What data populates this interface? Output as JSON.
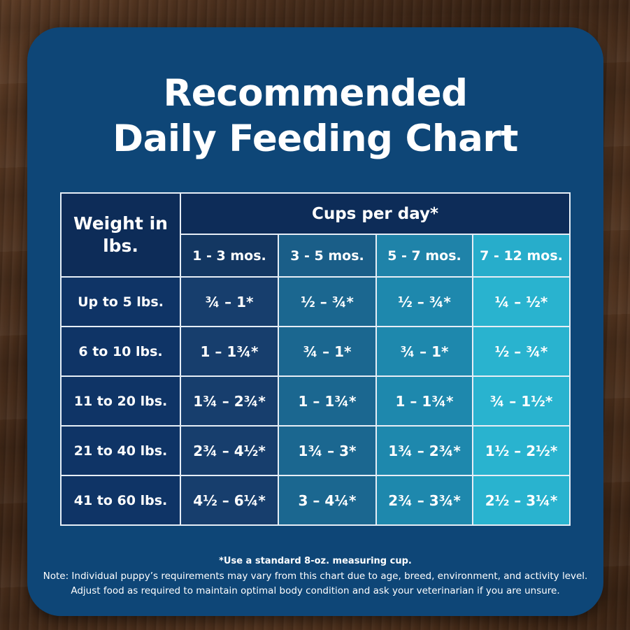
{
  "title": {
    "line1": "Recommended",
    "line2": "Daily Feeding Chart"
  },
  "table": {
    "weight_header": "Weight in lbs.",
    "cups_header": "Cups per day*",
    "ages": [
      "1 - 3 mos.",
      "3 - 5 mos.",
      "5 - 7 mos.",
      "7 - 12 mos."
    ],
    "rows": [
      {
        "weight": "Up to 5 lbs.",
        "values": [
          "¾ – 1*",
          "½ – ¾*",
          "½ – ¾*",
          "¼ – ½*"
        ]
      },
      {
        "weight": "6 to 10 lbs.",
        "values": [
          "1 – 1¾*",
          "¾ – 1*",
          "¾ – 1*",
          "½ – ¾*"
        ]
      },
      {
        "weight": "11 to 20 lbs.",
        "values": [
          "1¾ – 2¾*",
          "1 – 1¾*",
          "1 – 1¾*",
          "¾ – 1½*"
        ]
      },
      {
        "weight": "21 to 40 lbs.",
        "values": [
          "2¾ – 4½*",
          "1¾ – 3*",
          "1¾ – 2¾*",
          "1½ – 2½*"
        ]
      },
      {
        "weight": "41 to 60 lbs.",
        "values": [
          "4½ – 6¼*",
          "3 – 4¼*",
          "2¾ – 3¾*",
          "2½ – 3¼*"
        ]
      }
    ]
  },
  "footnotes": {
    "measure": "*Use a standard 8-oz. measuring cup.",
    "note1": "Note: Individual puppy’s requirements may vary from this chart due to age, breed, environment, and activity level.",
    "note2": "Adjust food as required to maintain optimal body condition and ask your veterinarian if you are unsure."
  },
  "colors": {
    "card": "#0e4677",
    "header_dark": "#0d2c58",
    "col_1_3": "#173e6d",
    "col_3_5": "#1b6790",
    "col_5_7": "#1e88ad",
    "col_7_12": "#29b3cf"
  }
}
